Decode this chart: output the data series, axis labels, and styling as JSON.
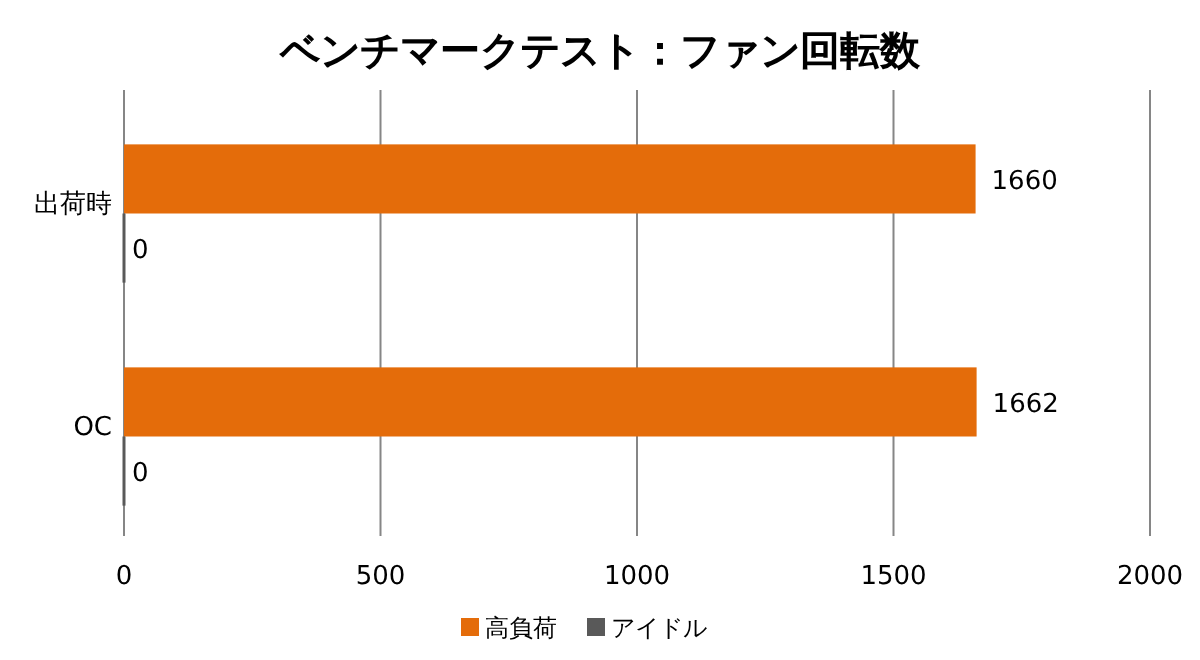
{
  "chart_data": {
    "type": "bar",
    "orientation": "horizontal",
    "title": "ベンチマークテスト：ファン回転数",
    "categories": [
      "出荷時",
      "OC"
    ],
    "series": [
      {
        "name": "高負荷",
        "color": "#e46c0a",
        "values": [
          1660,
          1662
        ]
      },
      {
        "name": "アイドル",
        "color": "#595959",
        "values": [
          0,
          0
        ]
      }
    ],
    "xlim": [
      0,
      2000
    ],
    "xticks": [
      0,
      500,
      1000,
      1500,
      2000
    ],
    "grid": "x",
    "legend": "bottom",
    "data_labels": true
  }
}
